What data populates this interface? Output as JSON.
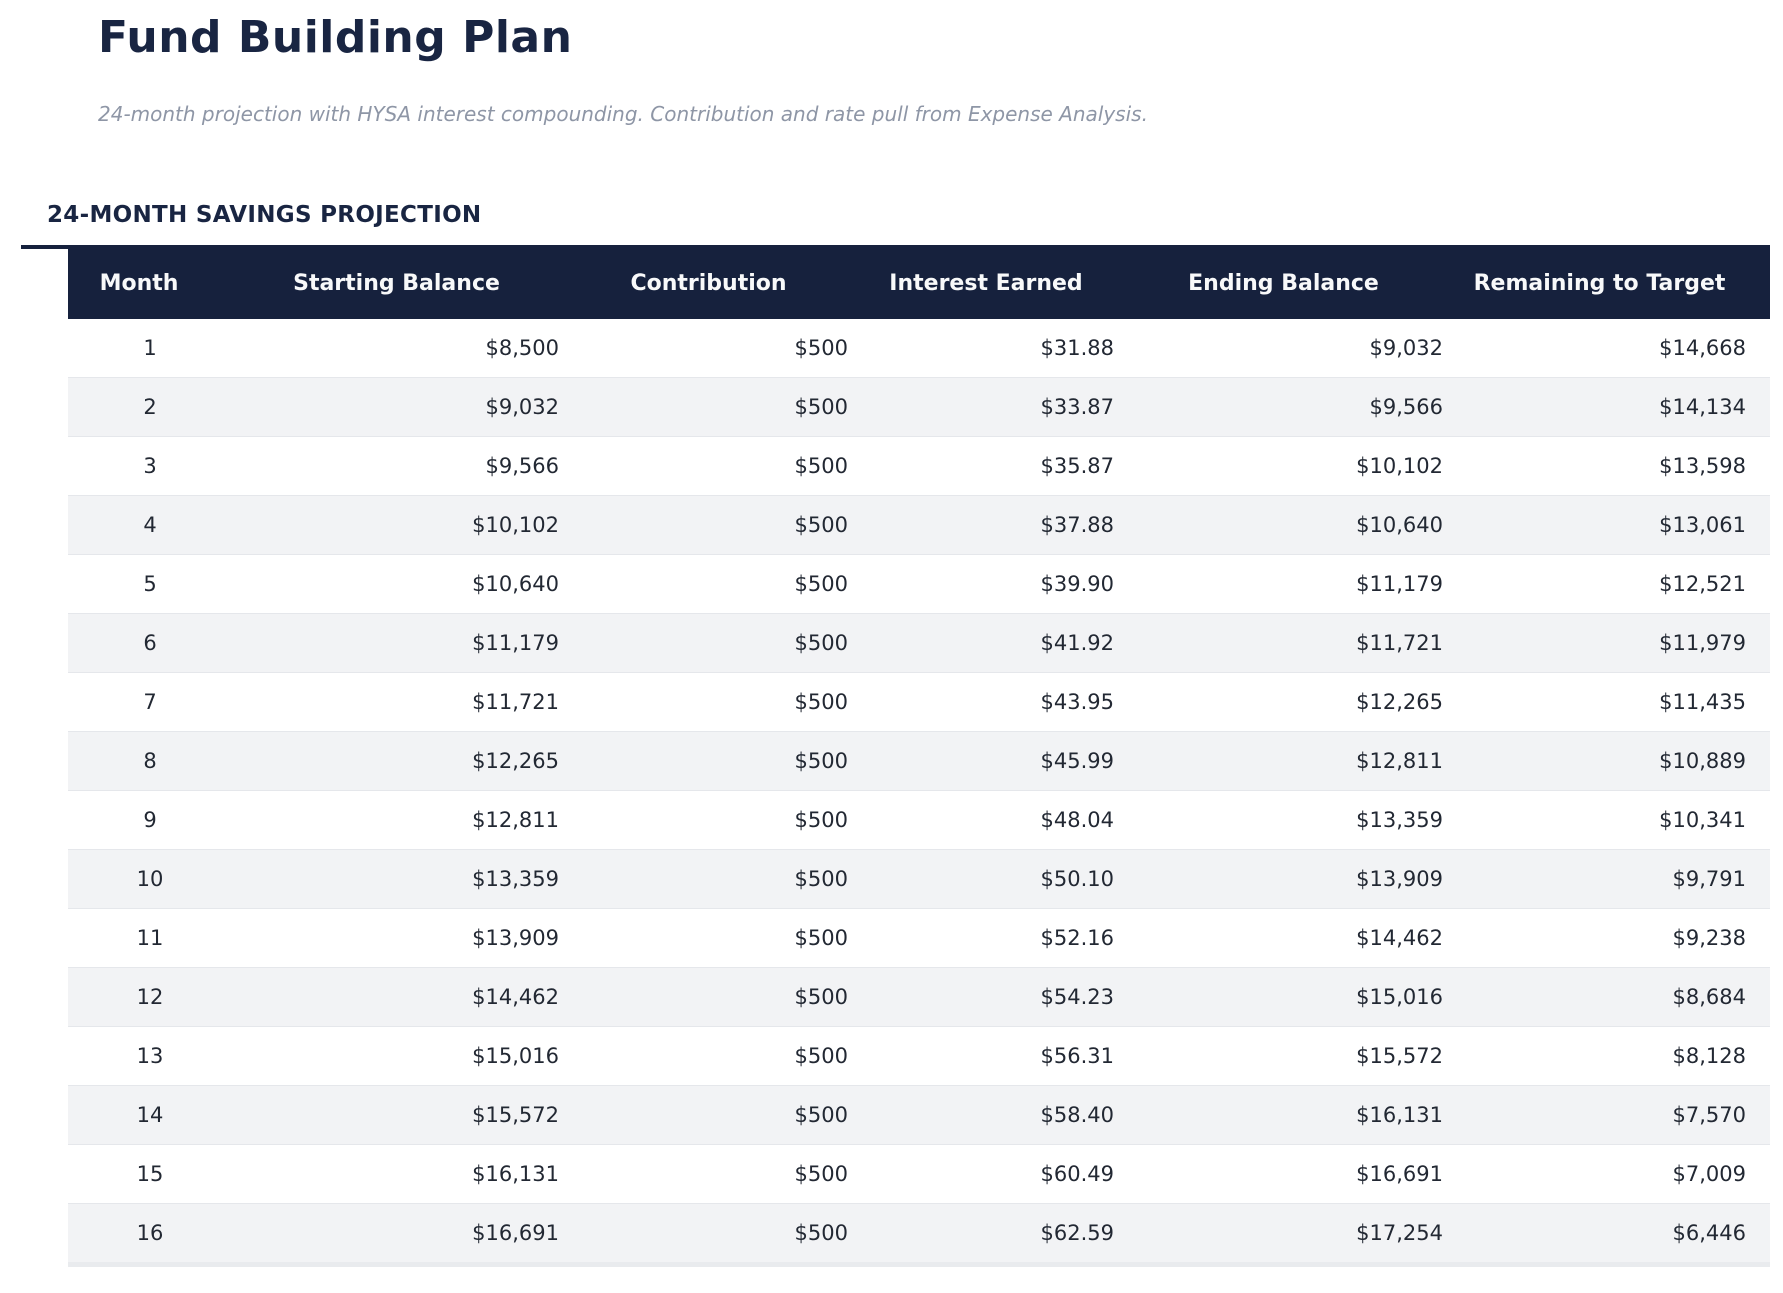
{
  "page": {
    "title": "Fund Building Plan",
    "subtitle": "24-month projection with HYSA interest compounding. Contribution and rate pull from Expense Analysis.",
    "section_heading": "24-MONTH SAVINGS PROJECTION"
  },
  "table": {
    "columns": [
      "Month",
      "Starting Balance",
      "Contribution",
      "Interest Earned",
      "Ending Balance",
      "Remaining to Target"
    ],
    "rows": [
      [
        "1",
        "$8,500",
        "$500",
        "$31.88",
        "$9,032",
        "$14,668"
      ],
      [
        "2",
        "$9,032",
        "$500",
        "$33.87",
        "$9,566",
        "$14,134"
      ],
      [
        "3",
        "$9,566",
        "$500",
        "$35.87",
        "$10,102",
        "$13,598"
      ],
      [
        "4",
        "$10,102",
        "$500",
        "$37.88",
        "$10,640",
        "$13,061"
      ],
      [
        "5",
        "$10,640",
        "$500",
        "$39.90",
        "$11,179",
        "$12,521"
      ],
      [
        "6",
        "$11,179",
        "$500",
        "$41.92",
        "$11,721",
        "$11,979"
      ],
      [
        "7",
        "$11,721",
        "$500",
        "$43.95",
        "$12,265",
        "$11,435"
      ],
      [
        "8",
        "$12,265",
        "$500",
        "$45.99",
        "$12,811",
        "$10,889"
      ],
      [
        "9",
        "$12,811",
        "$500",
        "$48.04",
        "$13,359",
        "$10,341"
      ],
      [
        "10",
        "$13,359",
        "$500",
        "$50.10",
        "$13,909",
        "$9,791"
      ],
      [
        "11",
        "$13,909",
        "$500",
        "$52.16",
        "$14,462",
        "$9,238"
      ],
      [
        "12",
        "$14,462",
        "$500",
        "$54.23",
        "$15,016",
        "$8,684"
      ],
      [
        "13",
        "$15,016",
        "$500",
        "$56.31",
        "$15,572",
        "$8,128"
      ],
      [
        "14",
        "$15,572",
        "$500",
        "$58.40",
        "$16,131",
        "$7,570"
      ],
      [
        "15",
        "$16,131",
        "$500",
        "$60.49",
        "$16,691",
        "$7,009"
      ],
      [
        "16",
        "$16,691",
        "$500",
        "$62.59",
        "$17,254",
        "$6,446"
      ]
    ]
  },
  "colors": {
    "navy_header": "#16213d",
    "title_navy": "#192542",
    "row_alt_gray": "#f2f3f5",
    "row_border": "#e5e7eb",
    "body_text": "#222833",
    "subtitle_gray": "#8e96a6",
    "header_text": "#f8f9fa"
  }
}
